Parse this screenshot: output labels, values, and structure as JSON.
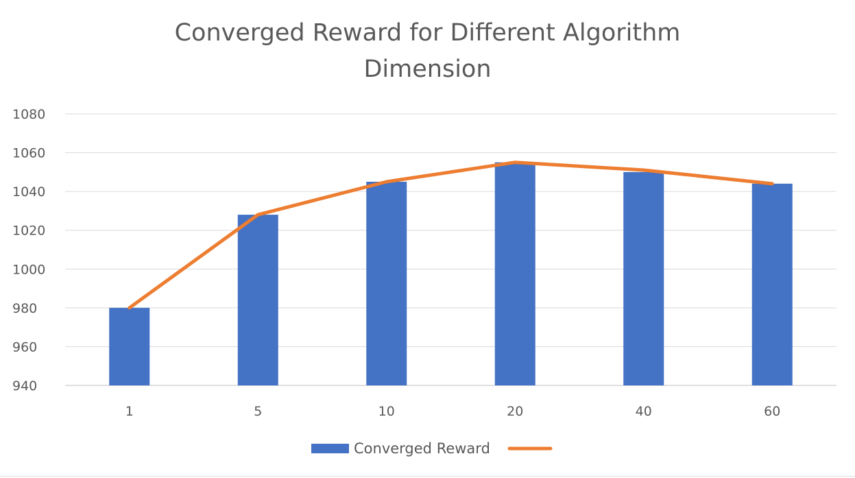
{
  "chart_data": {
    "type": "bar",
    "title_lines": [
      "Converged Reward for Different Algorithm",
      "Dimension"
    ],
    "categories": [
      "1",
      "5",
      "10",
      "20",
      "40",
      "60"
    ],
    "series": [
      {
        "name": "Converged Reward",
        "kind": "bar",
        "color": "#4472C4",
        "values": [
          980,
          1028,
          1045,
          1055,
          1050,
          1044
        ]
      },
      {
        "name": "",
        "kind": "line",
        "color": "#ED7D31",
        "values": [
          980,
          1028,
          1045,
          1055,
          1051,
          1044
        ]
      }
    ],
    "ylim": [
      940,
      1080
    ],
    "yticks": [
      940,
      960,
      980,
      1000,
      1020,
      1040,
      1060,
      1080
    ],
    "grid": true,
    "legend_position": "bottom"
  }
}
